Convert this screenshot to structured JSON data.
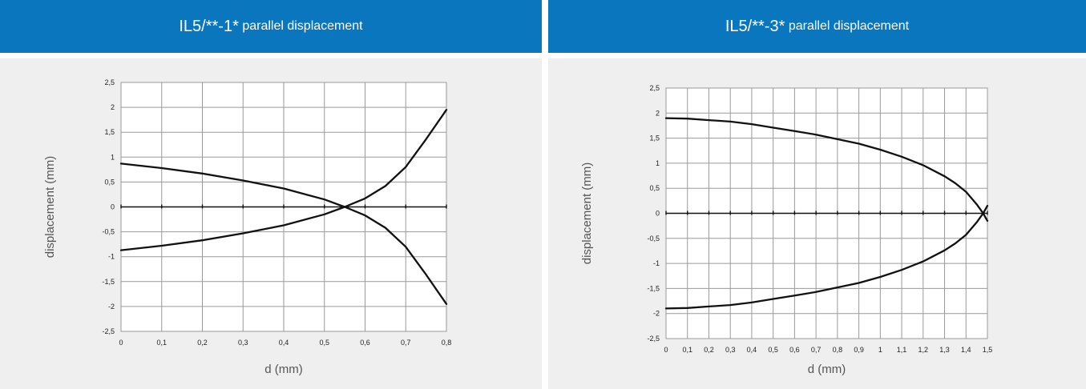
{
  "header_left": {
    "title_main": "IL5/**-1*",
    "title_rest": " parallel displacement"
  },
  "header_right": {
    "title_main": "IL5/**-3*",
    "title_rest": " parallel displacement"
  },
  "chart_data": [
    {
      "type": "line",
      "xlabel": "d (mm)",
      "ylabel": "displacement (mm)",
      "xlim": [
        0,
        0.8
      ],
      "ylim": [
        -2.5,
        2.5
      ],
      "x_ticks": [
        "0",
        "0,1",
        "0,2",
        "0,3",
        "0,4",
        "0,5",
        "0,6",
        "0,7",
        "0,8"
      ],
      "y_ticks": [
        "2,5",
        "2",
        "1,5",
        "1",
        "0,5",
        "0",
        "-0,5",
        "-1",
        "-1,5",
        "-2",
        "-2,5"
      ],
      "grid": true,
      "series": [
        {
          "x": [
            0,
            0.1,
            0.2,
            0.3,
            0.4,
            0.5,
            0.55,
            0.6,
            0.65,
            0.7,
            0.75,
            0.8
          ],
          "y": [
            0.87,
            0.78,
            0.67,
            0.53,
            0.37,
            0.15,
            0,
            -0.17,
            -0.42,
            -0.8,
            -1.36,
            -1.95
          ]
        },
        {
          "x": [
            0,
            0.1,
            0.2,
            0.3,
            0.4,
            0.5,
            0.55,
            0.6,
            0.65,
            0.7,
            0.75,
            0.8
          ],
          "y": [
            -0.87,
            -0.78,
            -0.67,
            -0.53,
            -0.37,
            -0.15,
            0,
            0.17,
            0.42,
            0.8,
            1.36,
            1.95
          ]
        }
      ]
    },
    {
      "type": "line",
      "xlabel": "d (mm)",
      "ylabel": "displacement (mm)",
      "xlim": [
        0,
        1.5
      ],
      "ylim": [
        -2.5,
        2.5
      ],
      "x_ticks": [
        "0",
        "0,1",
        "0,2",
        "0,3",
        "0,4",
        "0,5",
        "0,6",
        "0,7",
        "0,8",
        "0,9",
        "1",
        "1,1",
        "1,2",
        "1,3",
        "1,4",
        "1,5"
      ],
      "y_ticks": [
        "2,5",
        "2",
        "1,5",
        "1",
        "0,5",
        "0",
        "-0,5",
        "-1",
        "-1,5",
        "-2",
        "-2,5"
      ],
      "grid": true,
      "series": [
        {
          "x": [
            0,
            0.1,
            0.2,
            0.3,
            0.4,
            0.5,
            0.6,
            0.7,
            0.8,
            0.9,
            1.0,
            1.1,
            1.2,
            1.3,
            1.35,
            1.4,
            1.45,
            1.48,
            1.5
          ],
          "y": [
            1.9,
            1.89,
            1.86,
            1.83,
            1.78,
            1.71,
            1.64,
            1.57,
            1.48,
            1.39,
            1.27,
            1.13,
            0.96,
            0.74,
            0.6,
            0.43,
            0.18,
            0,
            -0.15
          ]
        },
        {
          "x": [
            0,
            0.1,
            0.2,
            0.3,
            0.4,
            0.5,
            0.6,
            0.7,
            0.8,
            0.9,
            1.0,
            1.1,
            1.2,
            1.3,
            1.35,
            1.4,
            1.45,
            1.48,
            1.5
          ],
          "y": [
            -1.9,
            -1.89,
            -1.86,
            -1.83,
            -1.78,
            -1.71,
            -1.64,
            -1.57,
            -1.48,
            -1.39,
            -1.27,
            -1.13,
            -0.96,
            -0.74,
            -0.6,
            -0.43,
            -0.18,
            0,
            0.15
          ]
        }
      ]
    }
  ]
}
